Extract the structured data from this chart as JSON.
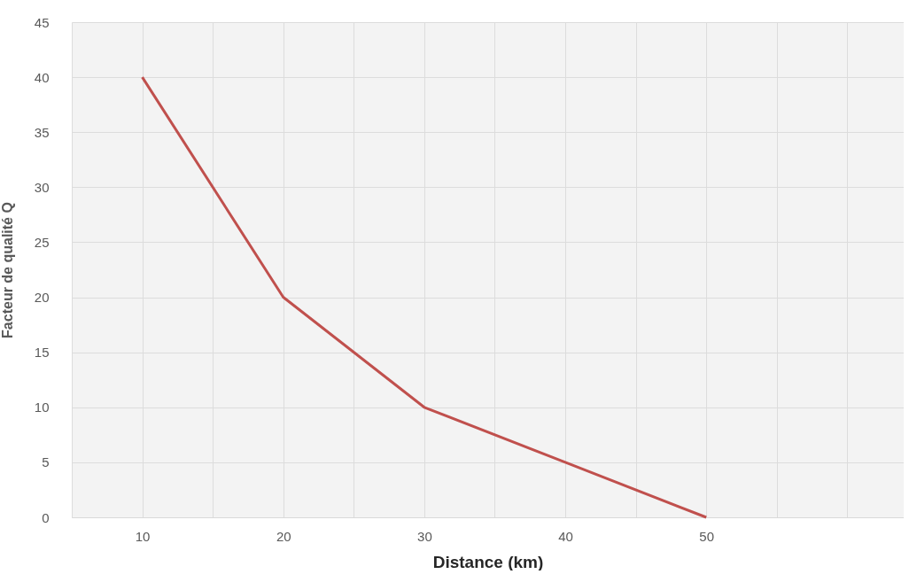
{
  "chart_data": {
    "type": "line",
    "xlabel": "Distance (km)",
    "ylabel": "Facteur de qualité Q",
    "x": [
      10,
      20,
      30,
      40,
      50
    ],
    "series": [
      {
        "color": "#c0504d",
        "values": [
          40,
          20,
          10,
          5,
          0
        ]
      }
    ],
    "xlim": [
      5,
      64
    ],
    "xticks": [
      {
        "value": 5,
        "label": null
      },
      10,
      {
        "value": 15,
        "label": null
      },
      20,
      {
        "value": 25,
        "label": null
      },
      30,
      {
        "value": 35,
        "label": null
      },
      40,
      {
        "value": 45,
        "label": null
      },
      50,
      {
        "value": 55,
        "label": null
      },
      {
        "value": 60,
        "label": null
      }
    ],
    "ylim": [
      0,
      45
    ],
    "yticks": [
      0,
      5,
      10,
      15,
      20,
      25,
      30,
      35,
      40,
      45
    ],
    "grid": true,
    "marker": "none",
    "line_style": "solid"
  }
}
